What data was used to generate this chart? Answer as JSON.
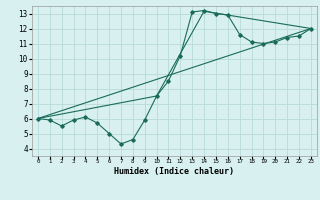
{
  "xlabel": "Humidex (Indice chaleur)",
  "bg_color": "#d8f0f0",
  "grid_color": "#b8dada",
  "line_color": "#1a6b5a",
  "xlim": [
    -0.5,
    23.5
  ],
  "ylim": [
    3.5,
    13.5
  ],
  "xticks": [
    0,
    1,
    2,
    3,
    4,
    5,
    6,
    7,
    8,
    9,
    10,
    11,
    12,
    13,
    14,
    15,
    16,
    17,
    18,
    19,
    20,
    21,
    22,
    23
  ],
  "yticks": [
    4,
    5,
    6,
    7,
    8,
    9,
    10,
    11,
    12,
    13
  ],
  "line1_x": [
    0,
    1,
    2,
    3,
    4,
    5,
    6,
    7,
    8,
    9,
    10,
    11,
    12,
    13,
    14,
    15,
    16,
    17,
    18,
    19,
    20,
    21,
    22,
    23
  ],
  "line1_y": [
    6.0,
    5.9,
    5.5,
    5.9,
    6.1,
    5.7,
    5.0,
    4.3,
    4.6,
    5.9,
    7.5,
    8.5,
    10.2,
    13.1,
    13.2,
    13.0,
    12.9,
    11.6,
    11.1,
    11.0,
    11.1,
    11.4,
    11.5,
    12.0
  ],
  "line2_x": [
    0,
    23
  ],
  "line2_y": [
    6.0,
    12.0
  ],
  "line3_x": [
    0,
    10,
    14,
    23
  ],
  "line3_y": [
    6.0,
    7.5,
    13.15,
    12.0
  ]
}
